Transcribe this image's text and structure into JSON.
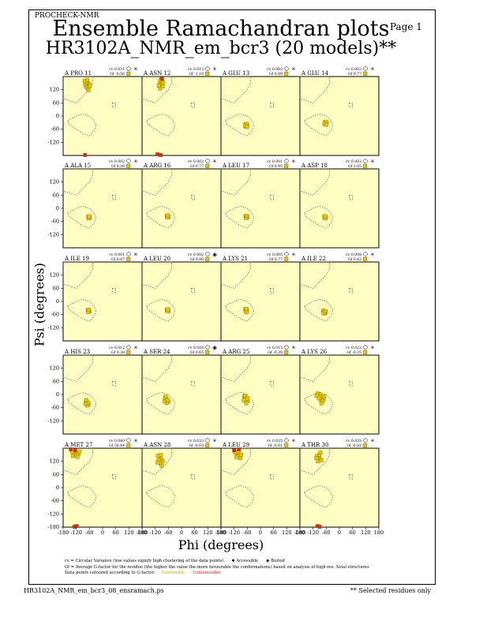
{
  "header": {
    "program": "PROCHECK-NMR",
    "page_label": "Page 1",
    "title": "Ensemble Ramachandran plots",
    "subtitle": "HR3102A_NMR_em_bcr3 (20 models)**"
  },
  "chart_data": {
    "type": "scatter",
    "title": "Ensemble Ramachandran plots",
    "xlabel": "Phi (degrees)",
    "ylabel": "Psi (degrees)",
    "xlim": [
      -180,
      180
    ],
    "ylim": [
      -180,
      180
    ],
    "x_ticks": [
      "-180",
      "-120",
      "-60",
      "0",
      "60",
      "120",
      "180"
    ],
    "y_ticks": [
      "120",
      "60",
      "0",
      "-60",
      "-120",
      "-180"
    ],
    "colors": {
      "background": "#ffffc4",
      "favourable": "#e6c800",
      "unfavourable": "#d42a1a",
      "region_outline": "#444444"
    },
    "panels": [
      {
        "residue": "A PRO 11",
        "cv": "cv 0.031",
        "gf": "Gf -0.56",
        "accessibility": "accessible",
        "points": [
          [
            -80,
            140
          ],
          [
            -72,
            130
          ],
          [
            -68,
            150
          ],
          [
            -60,
            145
          ],
          [
            -75,
            155
          ],
          [
            -66,
            125
          ],
          [
            -82,
            160
          ],
          [
            -58,
            138
          ],
          [
            -70,
            165
          ],
          [
            -64,
            118
          ],
          [
            -80,
            -178
          ]
        ]
      },
      {
        "residue": "A ASN 12",
        "cv": "cv 0.013",
        "gf": "Gf -1.18",
        "accessibility": "accessible",
        "points": [
          [
            -100,
            150
          ],
          [
            -92,
            142
          ],
          [
            -88,
            160
          ],
          [
            -96,
            165
          ],
          [
            -84,
            152
          ],
          [
            -104,
            138
          ],
          [
            -90,
            170
          ],
          [
            -98,
            125
          ],
          [
            -86,
            135
          ],
          [
            -110,
            -175
          ],
          [
            -95,
            -178
          ]
        ]
      },
      {
        "residue": "A GLU 13",
        "cv": "cv 0.003",
        "gf": "Gf 0.09",
        "accessibility": "accessible",
        "points": [
          [
            -65,
            -40
          ],
          [
            -62,
            -45
          ],
          [
            -68,
            -38
          ],
          [
            -60,
            -42
          ],
          [
            -66,
            -48
          ],
          [
            -63,
            -36
          ],
          [
            -70,
            -44
          ],
          [
            -61,
            -50
          ]
        ]
      },
      {
        "residue": "A GLU 14",
        "cv": "cv 0.003",
        "gf": "Gf 0.77",
        "accessibility": "accessible",
        "points": [
          [
            -63,
            -30
          ],
          [
            -60,
            -35
          ],
          [
            -66,
            -28
          ],
          [
            -58,
            -32
          ],
          [
            -64,
            -38
          ],
          [
            -61,
            -26
          ],
          [
            -68,
            -34
          ],
          [
            -59,
            -40
          ]
        ]
      },
      {
        "residue": "A ALA 15",
        "cv": "cv 0.002",
        "gf": "Gf 0.38",
        "accessibility": "accessible",
        "points": [
          [
            -62,
            -40
          ],
          [
            -60,
            -44
          ],
          [
            -65,
            -38
          ],
          [
            -58,
            -42
          ],
          [
            -64,
            -46
          ],
          [
            -61,
            -36
          ]
        ]
      },
      {
        "residue": "A ARG 16",
        "cv": "cv 0.002",
        "gf": "Gf 0.77",
        "accessibility": "accessible",
        "points": [
          [
            -64,
            -36
          ],
          [
            -61,
            -40
          ],
          [
            -67,
            -34
          ],
          [
            -59,
            -38
          ],
          [
            -65,
            -42
          ],
          [
            -62,
            -32
          ]
        ]
      },
      {
        "residue": "A LEU 17",
        "cv": "cv 0.001",
        "gf": "Gf 0.95",
        "accessibility": "accessible",
        "points": [
          [
            -65,
            -38
          ],
          [
            -62,
            -42
          ],
          [
            -68,
            -36
          ],
          [
            -60,
            -40
          ],
          [
            -66,
            -44
          ],
          [
            -63,
            -34
          ]
        ]
      },
      {
        "residue": "A ASP 18",
        "cv": "cv 0.003",
        "gf": "Gf 1.05",
        "accessibility": "accessible",
        "points": [
          [
            -66,
            -40
          ],
          [
            -63,
            -44
          ],
          [
            -69,
            -38
          ],
          [
            -61,
            -42
          ],
          [
            -67,
            -46
          ],
          [
            -64,
            -36
          ]
        ]
      },
      {
        "residue": "A ILE 19",
        "cv": "cv 0.001",
        "gf": "Gf 0.87",
        "accessibility": "accessible",
        "points": [
          [
            -65,
            -42
          ],
          [
            -62,
            -46
          ],
          [
            -68,
            -40
          ],
          [
            -60,
            -44
          ],
          [
            -66,
            -48
          ],
          [
            -63,
            -38
          ]
        ]
      },
      {
        "residue": "A LEU 20",
        "cv": "cv 0.002",
        "gf": "Gf 0.90",
        "accessibility": "buried",
        "points": [
          [
            -64,
            -40
          ],
          [
            -61,
            -44
          ],
          [
            -67,
            -38
          ],
          [
            -59,
            -42
          ],
          [
            -65,
            -46
          ],
          [
            -62,
            -36
          ]
        ]
      },
      {
        "residue": "A LYS 21",
        "cv": "cv 0.005",
        "gf": "Gf 0.77",
        "accessibility": "accessible",
        "points": [
          [
            -66,
            -38
          ],
          [
            -63,
            -42
          ],
          [
            -69,
            -36
          ],
          [
            -61,
            -40
          ],
          [
            -67,
            -44
          ],
          [
            -64,
            -50
          ],
          [
            -65,
            -34
          ]
        ]
      },
      {
        "residue": "A ILE 22",
        "cv": "cv 0.008",
        "gf": "Gf 0.42",
        "accessibility": "accessible",
        "points": [
          [
            -70,
            -45
          ],
          [
            -66,
            -50
          ],
          [
            -74,
            -42
          ],
          [
            -62,
            -48
          ],
          [
            -68,
            -55
          ],
          [
            -72,
            -52
          ],
          [
            -64,
            -44
          ]
        ]
      },
      {
        "residue": "A HIS 23",
        "cv": "cv 0.012",
        "gf": "Gf 0.38",
        "accessibility": "accessible",
        "points": [
          [
            -72,
            -35
          ],
          [
            -68,
            -40
          ],
          [
            -76,
            -30
          ],
          [
            -64,
            -45
          ],
          [
            -70,
            -50
          ],
          [
            -74,
            -25
          ],
          [
            -66,
            -38
          ],
          [
            -78,
            -42
          ]
        ]
      },
      {
        "residue": "A SER 24",
        "cv": "cv 0.018",
        "gf": "Gf 0.65",
        "accessibility": "buried",
        "points": [
          [
            -70,
            -20
          ],
          [
            -65,
            -28
          ],
          [
            -75,
            -15
          ],
          [
            -60,
            -32
          ],
          [
            -68,
            -38
          ],
          [
            -72,
            -10
          ],
          [
            -62,
            -25
          ],
          [
            -78,
            -30
          ]
        ]
      },
      {
        "residue": "A ARG 25",
        "cv": "cv 0.015",
        "gf": "Gf -0.28",
        "accessibility": "accessible",
        "points": [
          [
            -68,
            -15
          ],
          [
            -62,
            -22
          ],
          [
            -74,
            -10
          ],
          [
            -58,
            -28
          ],
          [
            -66,
            -32
          ],
          [
            -70,
            -5
          ],
          [
            -60,
            -18
          ],
          [
            -76,
            -25
          ],
          [
            -64,
            -40
          ]
        ]
      },
      {
        "residue": "A LYS 26",
        "cv": "cv 0.022",
        "gf": "Gf -0.35",
        "accessibility": "accessible",
        "points": [
          [
            -90,
            0
          ],
          [
            -80,
            -10
          ],
          [
            -100,
            5
          ],
          [
            -72,
            -20
          ],
          [
            -86,
            -25
          ],
          [
            -94,
            -15
          ],
          [
            -76,
            -30
          ],
          [
            -104,
            -5
          ],
          [
            -82,
            -40
          ],
          [
            -70,
            -8
          ]
        ]
      },
      {
        "residue": "A MET 27",
        "cv": "cv 0.040",
        "gf": "Gf 30.44",
        "accessibility": "accessible",
        "points": [
          [
            -130,
            160
          ],
          [
            -120,
            150
          ],
          [
            -140,
            165
          ],
          [
            -110,
            155
          ],
          [
            -125,
            170
          ],
          [
            -135,
            145
          ],
          [
            -115,
            140
          ],
          [
            -145,
            175
          ],
          [
            -105,
            165
          ],
          [
            -118,
            -175
          ],
          [
            -128,
            -178
          ]
        ]
      },
      {
        "residue": "A ASN 28",
        "cv": "cv 0.033",
        "gf": "Gf -0.63",
        "accessibility": "accessible",
        "points": [
          [
            -100,
            140
          ],
          [
            -92,
            130
          ],
          [
            -108,
            145
          ],
          [
            -86,
            120
          ],
          [
            -96,
            110
          ],
          [
            -104,
            125
          ],
          [
            -90,
            100
          ],
          [
            -110,
            115
          ],
          [
            -94,
            150
          ]
        ]
      },
      {
        "residue": "A LEU 29",
        "cv": "cv 0.035",
        "gf": "Gf -0.61",
        "accessibility": "accessible",
        "points": [
          [
            -105,
            155
          ],
          [
            -95,
            145
          ],
          [
            -115,
            160
          ],
          [
            -88,
            150
          ],
          [
            -100,
            165
          ],
          [
            -110,
            140
          ],
          [
            -92,
            135
          ],
          [
            -120,
            170
          ],
          [
            -98,
            175
          ]
        ]
      },
      {
        "residue": "A THR 30",
        "cv": "cv 0.029",
        "gf": "Gf -0.82",
        "accessibility": "accessible",
        "points": [
          [
            -95,
            140
          ],
          [
            -88,
            130
          ],
          [
            -102,
            145
          ],
          [
            -82,
            125
          ],
          [
            -92,
            150
          ],
          [
            -98,
            120
          ],
          [
            -86,
            160
          ],
          [
            -105,
            135
          ],
          [
            -90,
            -178
          ],
          [
            -100,
            -175
          ]
        ]
      }
    ]
  },
  "legend": {
    "cv_text": "cv = Circular Variance (low values signify high clustering of the data points).",
    "accessible": "Accessible",
    "buried": "Buried",
    "gf_text": "Gf = Average G-factor for the residue (the higher the value the more favourable the conformations) based on analysis of high-res. Xstal structures",
    "colouring_text": "Data points coloured according to G-factor:",
    "favourable": "Favourable",
    "unfavourable": "Unfavourable"
  },
  "footer": {
    "filename": "HR3102A_NMR_em_bcr3_08_ensramach.ps",
    "note": "** Selected residues only"
  }
}
